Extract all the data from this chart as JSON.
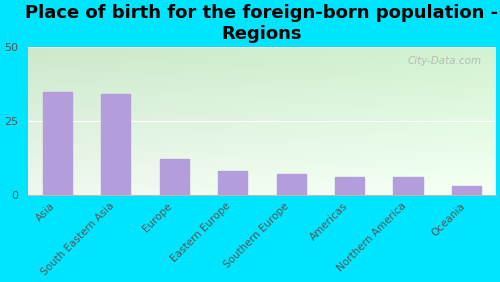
{
  "title": "Place of birth for the foreign-born population -\nRegions",
  "categories": [
    "Asia",
    "South Eastern Asia",
    "Europe",
    "Eastern Europe",
    "Southern Europe",
    "Americas",
    "Northern America",
    "Oceania"
  ],
  "values": [
    35,
    34,
    12,
    8,
    7,
    6,
    6,
    3
  ],
  "bar_color": "#b39ddb",
  "background_color": "#00e5ff",
  "plot_bg_top": "#cce8cc",
  "plot_bg_bottom": "#eaf5ea",
  "plot_bg_right": "#e8f5f5",
  "ylim": [
    0,
    50
  ],
  "yticks": [
    0,
    25,
    50
  ],
  "watermark": "City-Data.com",
  "title_fontsize": 13,
  "tick_label_fontsize": 7.5,
  "ytick_fontsize": 8
}
